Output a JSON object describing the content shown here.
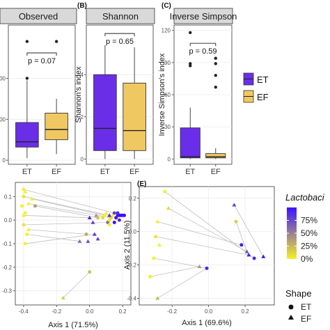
{
  "colors": {
    "ET": "#6a2ee8",
    "EF": "#f0c862",
    "panel_bg": "#ffffff",
    "strip_bg": "#d9d9d9",
    "grid": "#ebebeb"
  },
  "chart_data": [
    {
      "type": "box",
      "panel_label": "",
      "title": "Observed",
      "categories": [
        "ET",
        "EF"
      ],
      "ylabel": "",
      "ylim": [
        -10,
        330
      ],
      "yticks": [
        0,
        100,
        200
      ],
      "ytick_labels": [
        "0",
        "00",
        "00"
      ],
      "boxes": [
        {
          "name": "ET",
          "whisker_low": 5,
          "q1": 32,
          "median": 45,
          "q3": 92,
          "whisker_high": 195,
          "outliers": [
            200,
            290
          ]
        },
        {
          "name": "EF",
          "whisker_low": 15,
          "q1": 50,
          "median": 75,
          "q3": 115,
          "whisker_high": 150,
          "outliers": [
            290
          ]
        }
      ],
      "bracket_label": "p = 0.07",
      "bracket_y": 262
    },
    {
      "type": "box",
      "panel_label": "(B)",
      "title": "Shannon",
      "categories": [
        "ET",
        "EF"
      ],
      "ylabel": "Shannon's index",
      "ylim": [
        -0.25,
        6.35
      ],
      "yticks": [
        0,
        2,
        4
      ],
      "ytick_labels": [
        "0",
        "2",
        "4"
      ],
      "boxes": [
        {
          "name": "ET",
          "whisker_low": 0.0,
          "q1": 0.4,
          "median": 1.45,
          "q3": 4.0,
          "whisker_high": 5.4,
          "outliers": []
        },
        {
          "name": "EF",
          "whisker_low": 0.0,
          "q1": 0.4,
          "median": 1.35,
          "q3": 3.6,
          "whisker_high": 5.3,
          "outliers": []
        }
      ],
      "bracket_label": "p = 0.65",
      "bracket_y": 5.95
    },
    {
      "type": "box",
      "panel_label": "(C)",
      "title": "Inverse Simpson",
      "categories": [
        "ET",
        "EF"
      ],
      "ylabel": "Inverse Simpson's index",
      "ylim": [
        -5,
        125
      ],
      "yticks": [
        0,
        30,
        60,
        90,
        120
      ],
      "ytick_labels": [
        "0",
        "30",
        "60",
        "90",
        "120"
      ],
      "boxes": [
        {
          "name": "ET",
          "whisker_low": 0,
          "q1": 1,
          "median": 2,
          "q3": 29,
          "whisker_high": 48,
          "outliers": [
            87,
            89,
            118
          ]
        },
        {
          "name": "EF",
          "whisker_low": 0,
          "q1": 1,
          "median": 2,
          "q3": 5,
          "whisker_high": 10,
          "outliers": [
            67,
            78,
            89,
            94
          ]
        }
      ],
      "bracket_label": "p = 0.59",
      "bracket_y": 108
    },
    {
      "type": "scatter",
      "panel_label": "",
      "xlabel": "Axis 1 (71.5%)",
      "ylabel": "",
      "xlim": [
        -0.45,
        0.25
      ],
      "ylim": [
        -0.36,
        0.16
      ],
      "xticks": [
        -0.4,
        -0.2,
        0.0,
        0.2
      ],
      "xtick_labels": [
        "-0.4",
        "-0.2",
        "0.0",
        "0.2"
      ],
      "yticks": [
        -0.3,
        -0.2,
        -0.1,
        0.0,
        0.1
      ],
      "ytick_labels": [
        "-0.3",
        "-0.2",
        "-0.1",
        "0.0",
        "0.1"
      ],
      "points": [
        {
          "x": -0.4,
          "y": 0.13,
          "shape": "ET",
          "value": 0.0
        },
        {
          "x": -0.4,
          "y": 0.1,
          "shape": "ET",
          "value": 0.05
        },
        {
          "x": -0.41,
          "y": 0.06,
          "shape": "ET",
          "value": 0.0
        },
        {
          "x": -0.39,
          "y": 0.03,
          "shape": "ET",
          "value": 0.0
        },
        {
          "x": -0.4,
          "y": -0.02,
          "shape": "ET",
          "value": 0.05
        },
        {
          "x": -0.38,
          "y": -0.06,
          "shape": "ET",
          "value": 0.0
        },
        {
          "x": -0.39,
          "y": -0.1,
          "shape": "ET",
          "value": 0.0
        },
        {
          "x": -0.39,
          "y": 0.12,
          "shape": "EF",
          "value": 0.0
        },
        {
          "x": -0.35,
          "y": 0.09,
          "shape": "EF",
          "value": 0.0
        },
        {
          "x": -0.37,
          "y": 0.07,
          "shape": "EF",
          "value": 0.0
        },
        {
          "x": -0.4,
          "y": 0.02,
          "shape": "EF",
          "value": 0.0
        },
        {
          "x": -0.37,
          "y": -0.04,
          "shape": "EF",
          "value": 0.0
        },
        {
          "x": -0.33,
          "y": 0.06,
          "shape": "ET",
          "value": 0.35
        },
        {
          "x": 0.0,
          "y": 0.01,
          "shape": "EF",
          "value": 0.9
        },
        {
          "x": 0.02,
          "y": -0.01,
          "shape": "EF",
          "value": 0.8
        },
        {
          "x": -0.02,
          "y": -0.06,
          "shape": "ET",
          "value": 0.3
        },
        {
          "x": -0.01,
          "y": -0.09,
          "shape": "EF",
          "value": 0.7
        },
        {
          "x": -0.06,
          "y": -0.09,
          "shape": "EF",
          "value": 0.6
        },
        {
          "x": 0.04,
          "y": 0.02,
          "shape": "EF",
          "value": 0.4
        },
        {
          "x": 0.05,
          "y": 0.01,
          "shape": "ET",
          "value": 0.2
        },
        {
          "x": 0.08,
          "y": 0.01,
          "shape": "ET",
          "value": 0.1
        },
        {
          "x": 0.09,
          "y": 0.02,
          "shape": "ET",
          "value": 0.0
        },
        {
          "x": 0.1,
          "y": 0.03,
          "shape": "EF",
          "value": 0.0
        },
        {
          "x": 0.11,
          "y": -0.01,
          "shape": "ET",
          "value": 0.6
        },
        {
          "x": 0.12,
          "y": 0.0,
          "shape": "ET",
          "value": 0.05
        },
        {
          "x": 0.12,
          "y": -0.02,
          "shape": "ET",
          "value": 0.0
        },
        {
          "x": 0.13,
          "y": 0.01,
          "shape": "ET",
          "value": 0.1
        },
        {
          "x": 0.14,
          "y": 0.02,
          "shape": "EF",
          "value": 0.0
        },
        {
          "x": 0.15,
          "y": 0.03,
          "shape": "ET",
          "value": 0.8
        },
        {
          "x": 0.16,
          "y": 0.01,
          "shape": "ET",
          "value": 1.0
        },
        {
          "x": 0.17,
          "y": 0.02,
          "shape": "ET",
          "value": 1.0
        },
        {
          "x": 0.18,
          "y": 0.02,
          "shape": "ET",
          "value": 1.0
        },
        {
          "x": 0.19,
          "y": 0.02,
          "shape": "ET",
          "value": 1.0
        },
        {
          "x": 0.2,
          "y": 0.02,
          "shape": "ET",
          "value": 1.0
        },
        {
          "x": 0.21,
          "y": 0.02,
          "shape": "ET",
          "value": 1.0
        },
        {
          "x": 0.17,
          "y": 0.03,
          "shape": "ET",
          "value": 0.9
        },
        {
          "x": 0.18,
          "y": 0.0,
          "shape": "ET",
          "value": 0.9
        },
        {
          "x": 0.15,
          "y": -0.01,
          "shape": "ET",
          "value": 1.0
        },
        {
          "x": 0.12,
          "y": 0.02,
          "shape": "EF",
          "value": 0.85
        },
        {
          "x": 0.03,
          "y": -0.06,
          "shape": "EF",
          "value": 0.85
        },
        {
          "x": 0.05,
          "y": -0.08,
          "shape": "EF",
          "value": 0.8
        },
        {
          "x": 0.0,
          "y": -0.22,
          "shape": "ET",
          "value": 0.2
        },
        {
          "x": -0.16,
          "y": -0.33,
          "shape": "EF",
          "value": 0.15
        }
      ],
      "segments": [
        [
          -0.4,
          0.13,
          0.15,
          0.03
        ],
        [
          -0.4,
          0.1,
          0.12,
          0.02
        ],
        [
          -0.35,
          0.09,
          0.09,
          0.02
        ],
        [
          -0.37,
          0.07,
          0.13,
          0.01
        ],
        [
          -0.33,
          0.06,
          0.05,
          0.01
        ],
        [
          -0.4,
          0.02,
          0.0,
          0.01
        ],
        [
          -0.37,
          -0.04,
          -0.02,
          -0.06
        ],
        [
          -0.39,
          -0.1,
          0.03,
          -0.06
        ],
        [
          -0.38,
          -0.06,
          -0.06,
          -0.09
        ],
        [
          -0.4,
          -0.02,
          0.11,
          -0.01
        ],
        [
          -0.16,
          -0.33,
          0.0,
          -0.22
        ]
      ]
    },
    {
      "type": "scatter",
      "panel_label": "(E)",
      "xlabel": "Axis 1 (69.6%)",
      "ylabel": "Axis 2 (11.5%)",
      "xlim": [
        -0.38,
        0.36
      ],
      "ylim": [
        -0.44,
        0.27
      ],
      "xticks": [
        -0.2,
        0.0,
        0.2
      ],
      "xtick_labels": [
        "-0.2",
        "0.0",
        "0.2"
      ],
      "yticks": [
        -0.4,
        -0.2,
        0.0,
        0.2
      ],
      "ytick_labels": [
        "-0.4",
        "-0.2",
        "0.0",
        "0.2"
      ],
      "points": [
        {
          "x": -0.24,
          "y": 0.24,
          "shape": "ET",
          "value": 0.0
        },
        {
          "x": -0.22,
          "y": 0.14,
          "shape": "EF",
          "value": 0.1
        },
        {
          "x": -0.28,
          "y": 0.06,
          "shape": "EF",
          "value": 0.0
        },
        {
          "x": -0.29,
          "y": -0.03,
          "shape": "ET",
          "value": 0.05
        },
        {
          "x": -0.27,
          "y": -0.08,
          "shape": "EF",
          "value": 0.0
        },
        {
          "x": -0.3,
          "y": -0.16,
          "shape": "ET",
          "value": 0.0
        },
        {
          "x": -0.32,
          "y": -0.27,
          "shape": "ET",
          "value": 0.0
        },
        {
          "x": -0.28,
          "y": -0.4,
          "shape": "EF",
          "value": 0.25
        },
        {
          "x": -0.05,
          "y": -0.21,
          "shape": "EF",
          "value": 0.4
        },
        {
          "x": -0.01,
          "y": -0.22,
          "shape": "ET",
          "value": 0.9
        },
        {
          "x": 0.14,
          "y": 0.16,
          "shape": "EF",
          "value": 0.8
        },
        {
          "x": 0.15,
          "y": 0.06,
          "shape": "ET",
          "value": 0.15
        },
        {
          "x": 0.18,
          "y": -0.08,
          "shape": "ET",
          "value": 0.95
        },
        {
          "x": 0.21,
          "y": -0.12,
          "shape": "EF",
          "value": 0.7
        },
        {
          "x": 0.25,
          "y": -0.16,
          "shape": "ET",
          "value": 0.9
        },
        {
          "x": 0.3,
          "y": -0.15,
          "shape": "EF",
          "value": 1.0
        },
        {
          "x": 0.22,
          "y": -0.14,
          "shape": "EF",
          "value": 0.95
        }
      ],
      "segments": [
        [
          -0.24,
          0.24,
          0.25,
          -0.16
        ],
        [
          -0.22,
          0.14,
          0.21,
          -0.12
        ],
        [
          -0.28,
          0.06,
          0.18,
          -0.08
        ],
        [
          -0.29,
          -0.03,
          0.22,
          -0.14
        ],
        [
          -0.3,
          -0.16,
          -0.01,
          -0.22
        ],
        [
          -0.32,
          -0.27,
          -0.05,
          -0.21
        ],
        [
          -0.28,
          -0.4,
          -0.01,
          -0.22
        ],
        [
          0.14,
          0.16,
          0.3,
          -0.15
        ],
        [
          0.15,
          0.06,
          0.21,
          -0.12
        ]
      ]
    }
  ],
  "legends": {
    "group": {
      "items": [
        "ET",
        "EF"
      ]
    },
    "gradient": {
      "title": "Lactobaci",
      "labels": [
        "75%",
        "50%",
        "25%",
        "0%"
      ],
      "stops": [
        "#f7f026",
        "#3b11ff"
      ]
    },
    "shape": {
      "title": "Shape",
      "items": [
        "ET",
        "EF"
      ]
    }
  }
}
